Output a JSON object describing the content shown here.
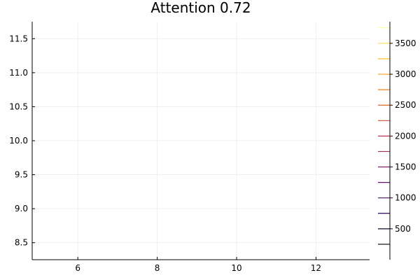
{
  "chart_data": {
    "type": "contour",
    "title": "Attention 0.72",
    "xlabel": "",
    "ylabel": "",
    "xlim": [
      4.85,
      13.35
    ],
    "ylim": [
      8.25,
      11.75
    ],
    "x_ticks": [
      6,
      8,
      10,
      12
    ],
    "y_ticks": [
      8.5,
      9.0,
      9.5,
      10.0,
      10.5,
      11.0,
      11.5
    ],
    "grid": true,
    "series": [],
    "colorbar": {
      "lim": [
        0,
        3850
      ],
      "ticks": [
        500,
        1000,
        1500,
        2000,
        2500,
        3000,
        3500
      ],
      "levels": [
        250,
        500,
        750,
        1000,
        1250,
        1500,
        1750,
        2000,
        2250,
        2500,
        2750,
        3000,
        3250,
        3500,
        3750
      ],
      "colormap": [
        "#000004",
        "#320a5e",
        "#781c6d",
        "#bc3754",
        "#ed6925",
        "#fbb61a",
        "#fcffa4"
      ]
    }
  }
}
